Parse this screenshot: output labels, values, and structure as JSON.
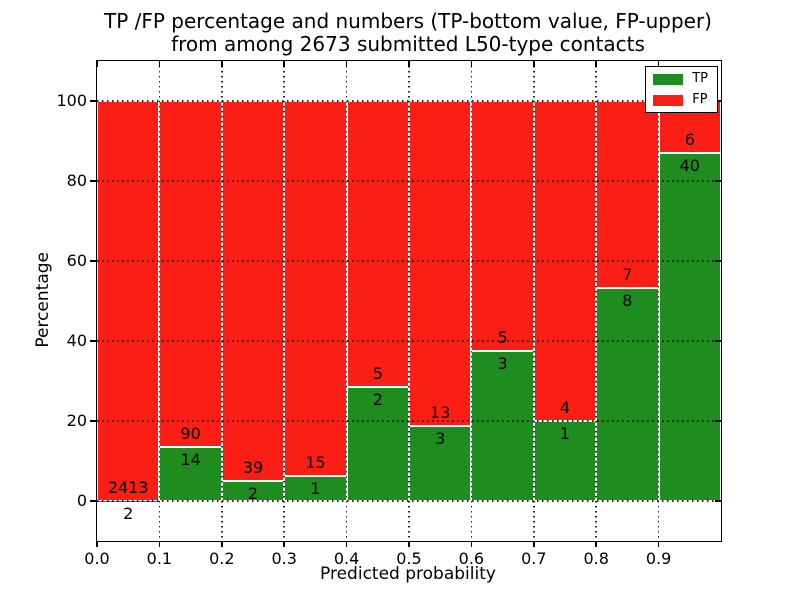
{
  "chart_data": {
    "type": "bar",
    "stacked": true,
    "title_line1": "TP /FP percentage and numbers (TP-bottom value, FP-upper)",
    "title_line2": "from among 2673 submitted L50-type contacts",
    "xlabel": "Predicted probability",
    "ylabel": "Percentage",
    "xlim": [
      0.0,
      1.0
    ],
    "ylim": [
      -10,
      110
    ],
    "bin_width": 0.1,
    "grid": "dotted",
    "legend_position": "upper right",
    "x_tick_labels": [
      "0.0",
      "0.1",
      "0.2",
      "0.3",
      "0.4",
      "0.5",
      "0.6",
      "0.7",
      "0.8",
      "0.9"
    ],
    "y_tick_values": [
      0,
      20,
      40,
      60,
      80,
      100
    ],
    "y_tick_labels": [
      "0",
      "20",
      "40",
      "60",
      "80",
      "100"
    ],
    "bins": [
      {
        "range": "0.0-0.1",
        "tp": 2,
        "fp": 2413
      },
      {
        "range": "0.1-0.2",
        "tp": 14,
        "fp": 90
      },
      {
        "range": "0.2-0.3",
        "tp": 2,
        "fp": 39
      },
      {
        "range": "0.3-0.4",
        "tp": 1,
        "fp": 15
      },
      {
        "range": "0.4-0.5",
        "tp": 2,
        "fp": 5
      },
      {
        "range": "0.5-0.6",
        "tp": 3,
        "fp": 13
      },
      {
        "range": "0.6-0.7",
        "tp": 3,
        "fp": 5
      },
      {
        "range": "0.7-0.8",
        "tp": 1,
        "fp": 4
      },
      {
        "range": "0.8-0.9",
        "tp": 8,
        "fp": 7
      },
      {
        "range": "0.9-1.0",
        "tp": 40,
        "fp": 6
      }
    ],
    "legend": [
      {
        "label": "TP",
        "color": "#1f8c1f"
      },
      {
        "label": "FP",
        "color": "#fb1e15"
      }
    ],
    "colors": {
      "tp": "#1f8c1f",
      "fp": "#fb1e15",
      "background": "#ffffff",
      "text": "#000000",
      "bar_edge": "#ffffff"
    }
  }
}
